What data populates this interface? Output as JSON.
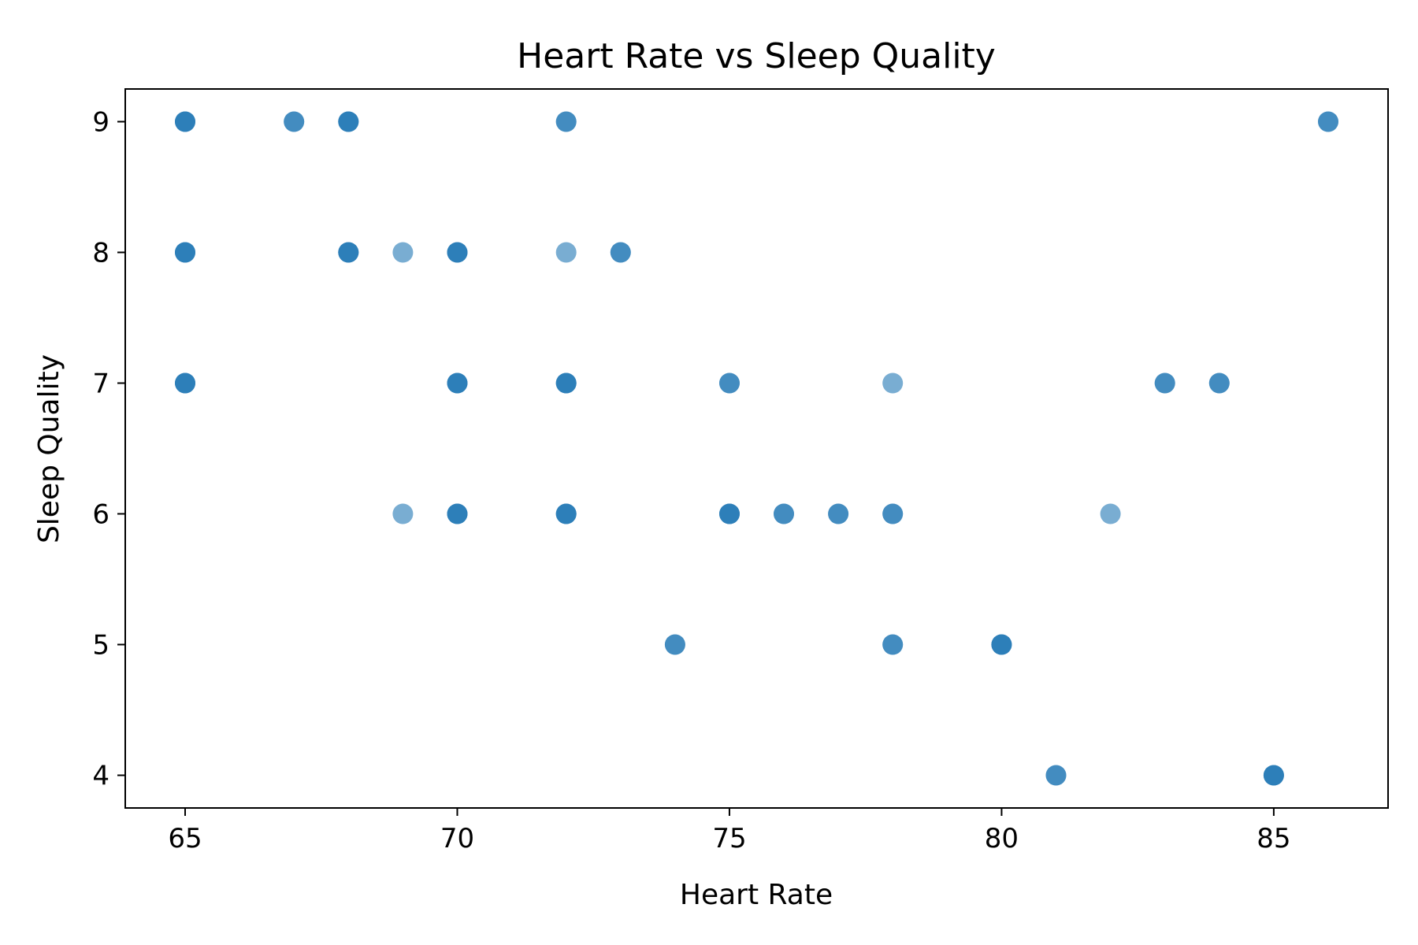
{
  "chart_data": {
    "type": "scatter",
    "title": "Heart Rate vs Sleep Quality",
    "xlabel": "Heart Rate",
    "ylabel": "Sleep Quality",
    "xlim": [
      63.9,
      87.1
    ],
    "ylim": [
      3.75,
      9.25
    ],
    "xticks": [
      65,
      70,
      75,
      80,
      85
    ],
    "yticks": [
      4,
      5,
      6,
      7,
      8,
      9
    ],
    "grid": false,
    "marker_color": "#1f77b4",
    "marker_alpha": 0.6,
    "points": [
      {
        "x": 65,
        "y": 9
      },
      {
        "x": 65,
        "y": 9
      },
      {
        "x": 65,
        "y": 9
      },
      {
        "x": 67,
        "y": 9
      },
      {
        "x": 67,
        "y": 9
      },
      {
        "x": 68,
        "y": 9
      },
      {
        "x": 68,
        "y": 9
      },
      {
        "x": 68,
        "y": 9
      },
      {
        "x": 72,
        "y": 9
      },
      {
        "x": 72,
        "y": 9
      },
      {
        "x": 86,
        "y": 9
      },
      {
        "x": 86,
        "y": 9
      },
      {
        "x": 65,
        "y": 8
      },
      {
        "x": 65,
        "y": 8
      },
      {
        "x": 65,
        "y": 8
      },
      {
        "x": 68,
        "y": 8
      },
      {
        "x": 68,
        "y": 8
      },
      {
        "x": 68,
        "y": 8
      },
      {
        "x": 69,
        "y": 8
      },
      {
        "x": 70,
        "y": 8
      },
      {
        "x": 70,
        "y": 8
      },
      {
        "x": 70,
        "y": 8
      },
      {
        "x": 72,
        "y": 8
      },
      {
        "x": 73,
        "y": 8
      },
      {
        "x": 73,
        "y": 8
      },
      {
        "x": 65,
        "y": 7
      },
      {
        "x": 65,
        "y": 7
      },
      {
        "x": 65,
        "y": 7
      },
      {
        "x": 70,
        "y": 7
      },
      {
        "x": 70,
        "y": 7
      },
      {
        "x": 70,
        "y": 7
      },
      {
        "x": 72,
        "y": 7
      },
      {
        "x": 72,
        "y": 7
      },
      {
        "x": 72,
        "y": 7
      },
      {
        "x": 75,
        "y": 7
      },
      {
        "x": 75,
        "y": 7
      },
      {
        "x": 78,
        "y": 7
      },
      {
        "x": 83,
        "y": 7
      },
      {
        "x": 83,
        "y": 7
      },
      {
        "x": 84,
        "y": 7
      },
      {
        "x": 84,
        "y": 7
      },
      {
        "x": 69,
        "y": 6
      },
      {
        "x": 70,
        "y": 6
      },
      {
        "x": 70,
        "y": 6
      },
      {
        "x": 70,
        "y": 6
      },
      {
        "x": 72,
        "y": 6
      },
      {
        "x": 72,
        "y": 6
      },
      {
        "x": 72,
        "y": 6
      },
      {
        "x": 75,
        "y": 6
      },
      {
        "x": 75,
        "y": 6
      },
      {
        "x": 75,
        "y": 6
      },
      {
        "x": 76,
        "y": 6
      },
      {
        "x": 76,
        "y": 6
      },
      {
        "x": 77,
        "y": 6
      },
      {
        "x": 77,
        "y": 6
      },
      {
        "x": 78,
        "y": 6
      },
      {
        "x": 78,
        "y": 6
      },
      {
        "x": 82,
        "y": 6
      },
      {
        "x": 74,
        "y": 5
      },
      {
        "x": 74,
        "y": 5
      },
      {
        "x": 78,
        "y": 5
      },
      {
        "x": 78,
        "y": 5
      },
      {
        "x": 80,
        "y": 5
      },
      {
        "x": 80,
        "y": 5
      },
      {
        "x": 80,
        "y": 5
      },
      {
        "x": 81,
        "y": 4
      },
      {
        "x": 81,
        "y": 4
      },
      {
        "x": 85,
        "y": 4
      },
      {
        "x": 85,
        "y": 4
      },
      {
        "x": 85,
        "y": 4
      }
    ]
  }
}
